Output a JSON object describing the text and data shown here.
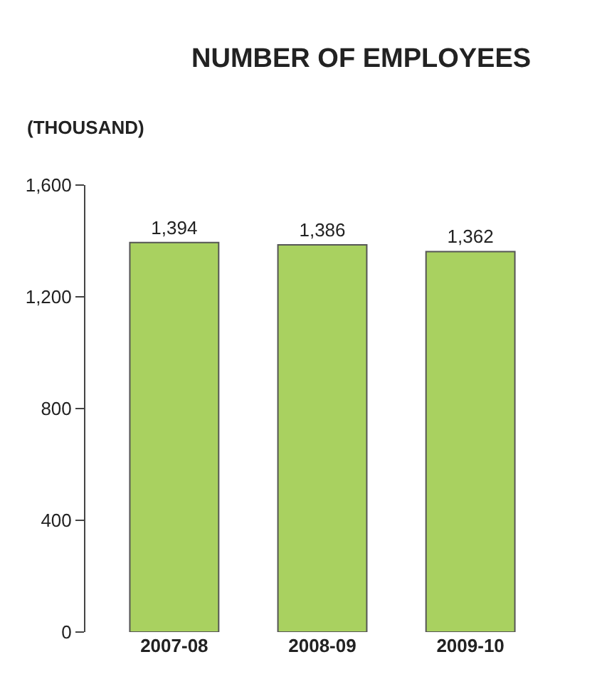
{
  "chart_data": {
    "type": "bar",
    "title": "NUMBER OF EMPLOYEES",
    "ylabel": "(THOUSAND)",
    "categories": [
      "2007-08",
      "2008-09",
      "2009-10"
    ],
    "values": [
      1394,
      1386,
      1362
    ],
    "color": "#a9d160",
    "ylim": [
      0,
      1600
    ],
    "yticks": [
      0,
      {
        "value": 400,
        "label": "400"
      },
      {
        "value": 800,
        "label": "800"
      },
      {
        "value": 1200,
        "label": "1,200"
      },
      {
        "value": 1600,
        "label": "1,600"
      }
    ],
    "value_labels": [
      "1,394",
      "1,386",
      "1,362"
    ]
  }
}
